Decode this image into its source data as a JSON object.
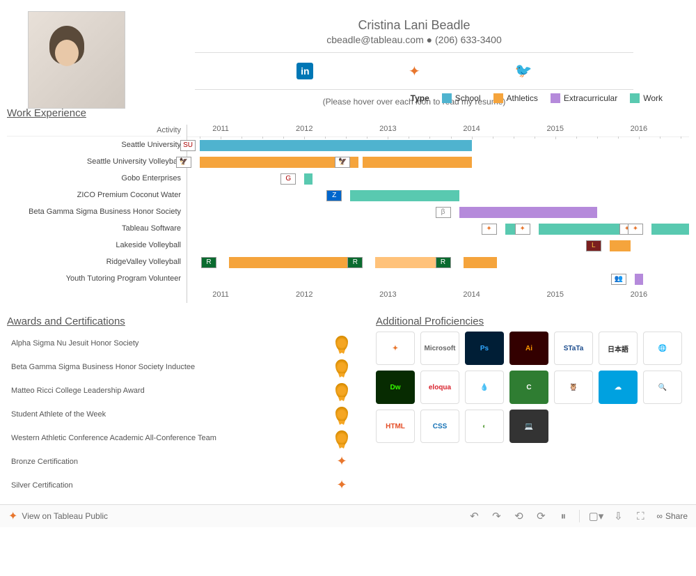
{
  "header": {
    "name": "Cristina Lani Beadle",
    "email": "cbeadle@tableau.com",
    "bullet": "●",
    "phone": "(206) 633-3400",
    "hover_note": "(Please hover over each icon to read my resume)",
    "social": [
      {
        "id": "linkedin",
        "label": "in"
      },
      {
        "id": "tableau",
        "label": "✦"
      },
      {
        "id": "twitter",
        "label": "🐦"
      }
    ]
  },
  "work_experience": {
    "title": "Work Experience",
    "legend_title": "Type",
    "legend_items": [
      {
        "label": "School",
        "color": "#4fb3cf"
      },
      {
        "label": "Athletics",
        "color": "#f5a43c"
      },
      {
        "label": "Extracurricular",
        "color": "#b58adb"
      },
      {
        "label": "Work",
        "color": "#59c9b0"
      }
    ],
    "activity_header": "Activity",
    "year_min": 2010.6,
    "year_max": 2016.6,
    "years": [
      2011,
      2012,
      2013,
      2014,
      2015,
      2016
    ],
    "rows": [
      {
        "label": "Seattle University",
        "bars": [
          {
            "start": 2010.75,
            "end": 2014.0,
            "color": "#4fb3cf"
          }
        ],
        "icons": [
          {
            "at": 2010.7,
            "bg": "#fff",
            "txt": "SU",
            "fg": "#a00"
          }
        ]
      },
      {
        "label": "Seattle University Volleyball",
        "bars": [
          {
            "start": 2010.75,
            "end": 2012.65,
            "color": "#f5a43c"
          },
          {
            "start": 2012.7,
            "end": 2014.0,
            "color": "#f5a43c"
          }
        ],
        "icons": [
          {
            "at": 2010.65,
            "bg": "#fff",
            "txt": "🦅",
            "fg": "#a00"
          },
          {
            "at": 2012.55,
            "bg": "#fff",
            "txt": "🦅",
            "fg": "#a00"
          }
        ]
      },
      {
        "label": "Gobo Enterprises",
        "bars": [
          {
            "start": 2012.0,
            "end": 2012.1,
            "color": "#59c9b0"
          }
        ],
        "icons": [
          {
            "at": 2011.9,
            "bg": "#fff",
            "txt": "G",
            "fg": "#a00"
          }
        ]
      },
      {
        "label": "ZICO Premium Coconut Water",
        "bars": [
          {
            "start": 2012.55,
            "end": 2013.85,
            "color": "#59c9b0"
          }
        ],
        "icons": [
          {
            "at": 2012.45,
            "bg": "#06c",
            "txt": "Z",
            "fg": "#fff"
          }
        ]
      },
      {
        "label": "Beta Gamma Sigma Business Honor Society",
        "bars": [
          {
            "start": 2013.85,
            "end": 2015.5,
            "color": "#b58adb"
          }
        ],
        "icons": [
          {
            "at": 2013.75,
            "bg": "#fff",
            "txt": "β",
            "fg": "#888"
          }
        ]
      },
      {
        "label": "Tableau Software",
        "bars": [
          {
            "start": 2014.4,
            "end": 2014.65,
            "color": "#59c9b0"
          },
          {
            "start": 2014.8,
            "end": 2015.9,
            "color": "#59c9b0"
          },
          {
            "start": 2016.15,
            "end": 2016.6,
            "color": "#59c9b0"
          }
        ],
        "icons": [
          {
            "at": 2014.3,
            "bg": "#fff",
            "txt": "✦",
            "fg": "#e8762d"
          },
          {
            "at": 2014.7,
            "bg": "#fff",
            "txt": "✦",
            "fg": "#e8762d"
          },
          {
            "at": 2015.95,
            "bg": "#fff",
            "txt": "✦",
            "fg": "#e8762d"
          },
          {
            "at": 2016.05,
            "bg": "#fff",
            "txt": "✦",
            "fg": "#e8762d"
          }
        ]
      },
      {
        "label": "Lakeside Volleyball",
        "bars": [
          {
            "start": 2015.65,
            "end": 2015.9,
            "color": "#f5a43c"
          }
        ],
        "icons": [
          {
            "at": 2015.55,
            "bg": "#7a1f1f",
            "txt": "L",
            "fg": "#f5c040"
          }
        ]
      },
      {
        "label": "RidgeValley Volleyball",
        "bars": [
          {
            "start": 2010.8,
            "end": 2010.95,
            "color": "#f5a43c"
          },
          {
            "start": 2011.1,
            "end": 2012.7,
            "color": "#f5a43c"
          },
          {
            "start": 2012.85,
            "end": 2013.75,
            "color": "#ffc27a"
          },
          {
            "start": 2013.9,
            "end": 2014.3,
            "color": "#f5a43c"
          }
        ],
        "icons": [
          {
            "at": 2010.95,
            "bg": "#0a6b2f",
            "txt": "R",
            "fg": "#fff"
          },
          {
            "at": 2012.7,
            "bg": "#0a6b2f",
            "txt": "R",
            "fg": "#fff"
          },
          {
            "at": 2013.75,
            "bg": "#0a6b2f",
            "txt": "R",
            "fg": "#fff"
          }
        ]
      },
      {
        "label": "Youth Tutoring Program Volunteer",
        "bars": [
          {
            "start": 2015.95,
            "end": 2016.05,
            "color": "#b58adb"
          }
        ],
        "icons": [
          {
            "at": 2015.85,
            "bg": "#fff",
            "txt": "👥",
            "fg": "#000"
          }
        ]
      }
    ]
  },
  "awards": {
    "title": "Awards and Certifications",
    "items": [
      {
        "label": "Alpha Sigma Nu Jesuit Honor Society",
        "badge": "medal"
      },
      {
        "label": "Beta Gamma Sigma Business Honor Society Inductee",
        "badge": "medal"
      },
      {
        "label": "Matteo Ricci College Leadership Award",
        "badge": "medal"
      },
      {
        "label": "Student Athlete of the Week",
        "badge": "medal"
      },
      {
        "label": "Western Athletic Conference Academic All-Conference Team",
        "badge": "medal"
      },
      {
        "label": "Bronze Certification",
        "badge": "tableau"
      },
      {
        "label": "Silver Certification",
        "badge": "tableau"
      }
    ]
  },
  "proficiencies": {
    "title": "Additional Proficiencies",
    "items": [
      {
        "label": "✦",
        "bg": "#ffffff",
        "fg": "#e8762d",
        "title": "Tableau"
      },
      {
        "label": "Microsoft",
        "bg": "#ffffff",
        "fg": "#666",
        "title": "Microsoft"
      },
      {
        "label": "Ps",
        "bg": "#001e36",
        "fg": "#31a8ff",
        "title": "Photoshop"
      },
      {
        "label": "Ai",
        "bg": "#330000",
        "fg": "#ff9a00",
        "title": "Illustrator"
      },
      {
        "label": "STaTa",
        "bg": "#ffffff",
        "fg": "#1a4b8c",
        "title": "Stata"
      },
      {
        "label": "日本語",
        "bg": "#ffffff",
        "fg": "#333",
        "title": "Japanese"
      },
      {
        "label": "🌐",
        "bg": "#ffffff",
        "fg": "#4aa3df",
        "title": "Globe"
      },
      {
        "label": "Dw",
        "bg": "#072b01",
        "fg": "#35fa00",
        "title": "Dreamweaver"
      },
      {
        "label": "eloqua",
        "bg": "#ffffff",
        "fg": "#d9232e",
        "title": "Eloqua"
      },
      {
        "label": "💧",
        "bg": "#ffffff",
        "fg": "#0678be",
        "title": "Drupal"
      },
      {
        "label": "C",
        "bg": "#2f7d32",
        "fg": "#fff",
        "title": "Camtasia"
      },
      {
        "label": "🦉",
        "bg": "#ffffff",
        "fg": "#000",
        "title": "Hootsuite"
      },
      {
        "label": "☁",
        "bg": "#00a1e0",
        "fg": "#fff",
        "title": "Salesforce"
      },
      {
        "label": "🔍",
        "bg": "#ffffff",
        "fg": "#555",
        "title": "Analytics"
      },
      {
        "label": "HTML",
        "bg": "#ffffff",
        "fg": "#e44d26",
        "title": "HTML5"
      },
      {
        "label": "CSS",
        "bg": "#ffffff",
        "fg": "#1572b6",
        "title": "CSS3"
      },
      {
        "label": "◐",
        "bg": "#ffffff",
        "fg": "#6aa84f",
        "title": "WebEx"
      },
      {
        "label": "💻",
        "bg": "#333",
        "fg": "#fff",
        "title": "Laptop"
      }
    ]
  },
  "footer": {
    "view_label": "View on Tableau Public",
    "share_label": "Share"
  }
}
